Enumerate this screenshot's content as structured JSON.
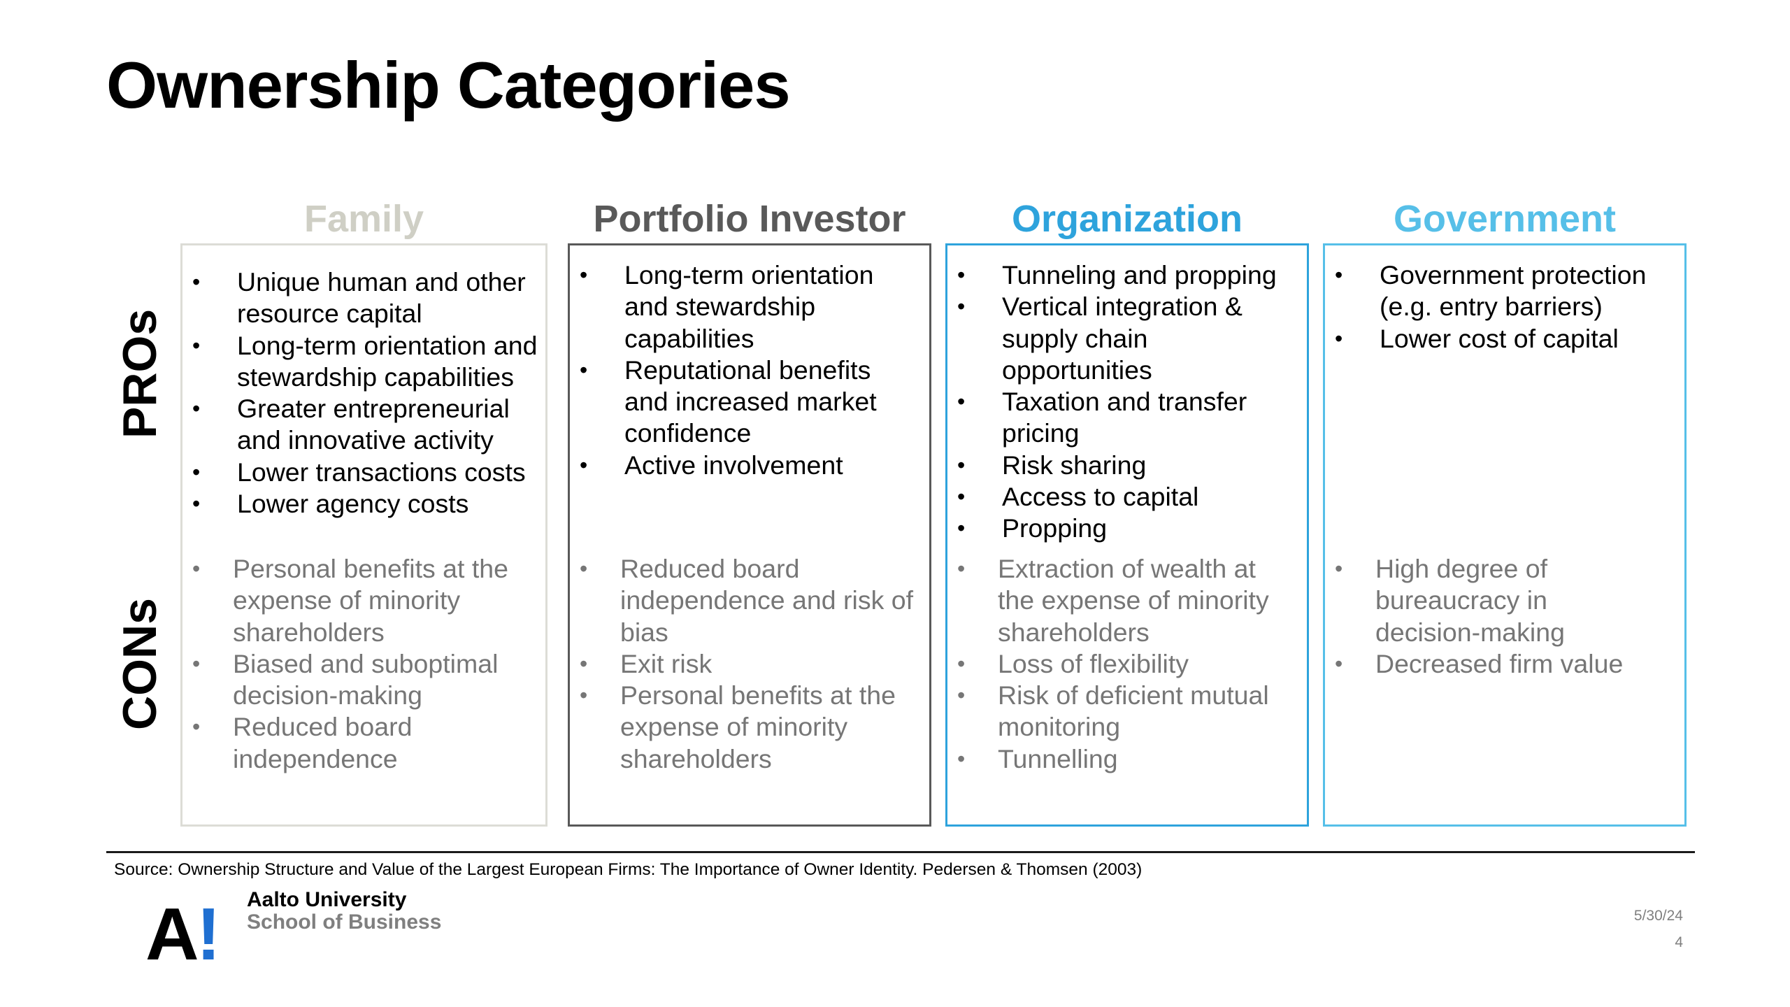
{
  "title": "Ownership Categories",
  "row_labels": {
    "pros": "PROs",
    "cons": "CONs"
  },
  "colors": {
    "family": "#cfcfc5",
    "portfolio": "#595959",
    "organization": "#2ea3dc",
    "government": "#56bfe8",
    "cons_text": "#767676",
    "logo_accent": "#1f6fd1"
  },
  "columns": [
    {
      "heading": "Family",
      "pros": [
        "Unique human and other resource capital",
        "Long-term orientation and stewardship capabilities",
        "Greater entrepreneurial and innovative activity",
        "Lower transactions costs",
        "Lower agency costs"
      ],
      "cons": [
        "Personal benefits at the expense of minority shareholders",
        "Biased and suboptimal decision-making",
        "Reduced board independence"
      ]
    },
    {
      "heading": "Portfolio Investor",
      "pros": [
        "Long-term orientation and stewardship capabilities",
        "Reputational benefits and increased market confidence",
        "Active involvement"
      ],
      "cons": [
        "Reduced board independence and risk of bias",
        "Exit risk",
        "Personal benefits at the expense of minority shareholders"
      ]
    },
    {
      "heading": "Organization",
      "pros": [
        "Tunneling and propping",
        "Vertical integration & supply chain opportunities",
        "Taxation and transfer pricing",
        "Risk sharing",
        "Access to capital",
        "Propping"
      ],
      "cons": [
        "Extraction of wealth at the expense of minority shareholders",
        "Loss of flexibility",
        "Risk of deficient mutual monitoring",
        "Tunnelling"
      ]
    },
    {
      "heading": "Government",
      "pros": [
        "Government protection (e.g. entry barriers)",
        "Lower cost of capital"
      ],
      "cons": [
        "High degree of bureaucracy in decision-making",
        "Decreased firm value"
      ]
    }
  ],
  "source": "Source: Ownership Structure and Value of the Largest European Firms: The Importance of Owner Identity. Pedersen & Thomsen (2003)",
  "logo": {
    "mark": "A",
    "excl": "!",
    "name": "Aalto University",
    "sub": "School of Business"
  },
  "date": "5/30/24",
  "page_number": "4"
}
